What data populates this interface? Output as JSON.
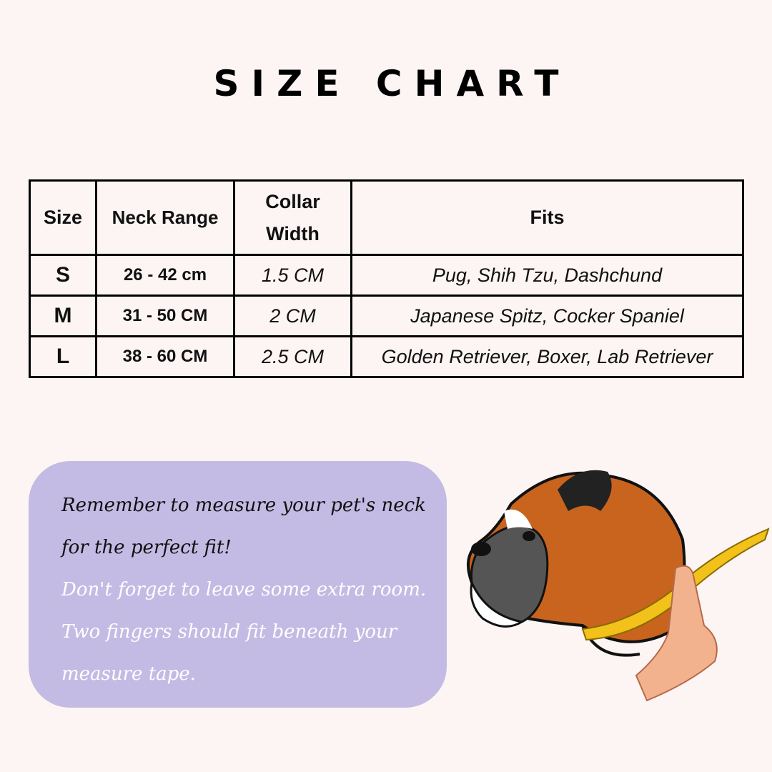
{
  "title": "SIZE CHART",
  "table": {
    "headers": [
      "Size",
      "Neck Range",
      "Collar Width",
      "Fits"
    ],
    "rows": [
      {
        "size": "S",
        "neck_range": "26 - 42 cm",
        "collar_width": "1.5 CM",
        "fits": "Pug, Shih Tzu, Dashchund"
      },
      {
        "size": "M",
        "neck_range": "31 - 50 CM",
        "collar_width": "2 CM",
        "fits": "Japanese Spitz, Cocker Spaniel"
      },
      {
        "size": "L",
        "neck_range": "38 - 60 CM",
        "collar_width": "2.5 CM",
        "fits": "Golden Retriever, Boxer, Lab Retriever"
      }
    ]
  },
  "callout": {
    "line_dark": "Remember to measure your pet's neck for the perfect fit!",
    "line_white": "Don't forget to leave some extra room. Two fingers should fit beneath your measure tape.",
    "background": "#c4bbe4"
  },
  "illustration": {
    "icon": "boxer-dog-measuring-tape-illustration"
  }
}
